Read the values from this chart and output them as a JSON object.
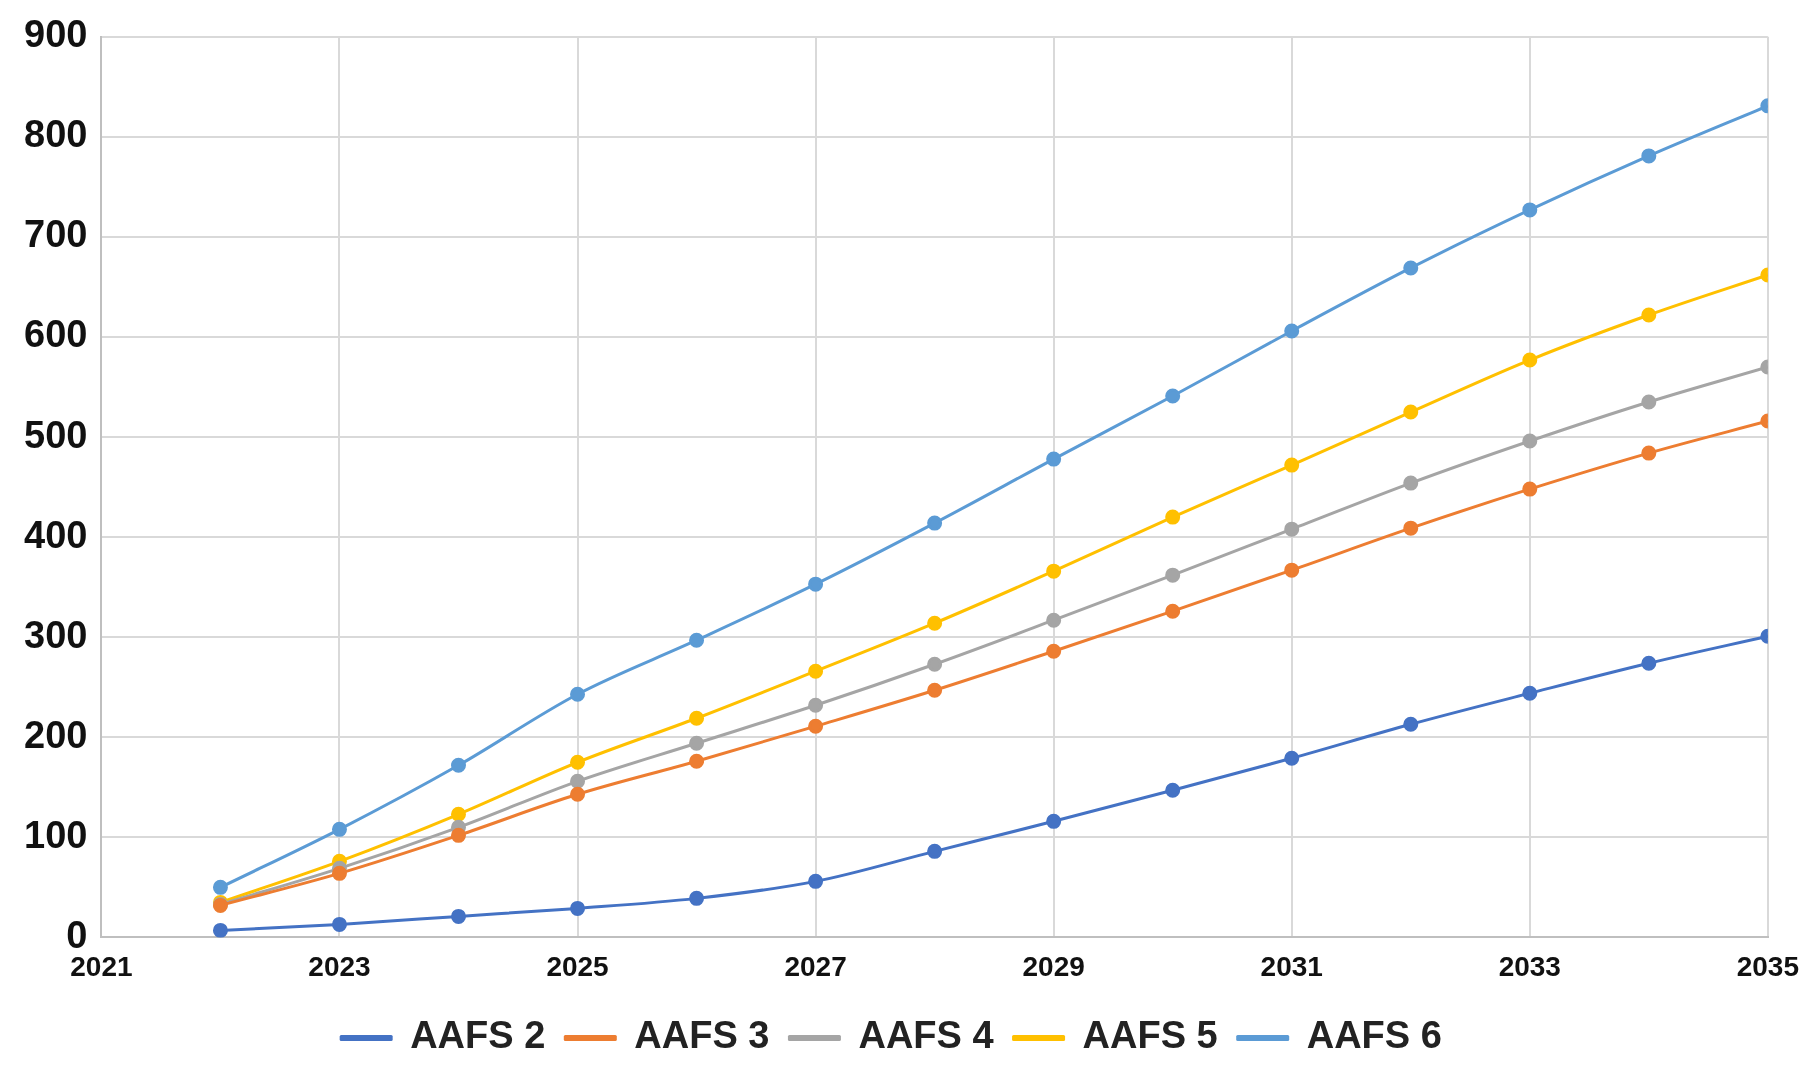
{
  "chart_data": {
    "type": "line",
    "x": [
      2022,
      2023,
      2024,
      2025,
      2026,
      2027,
      2028,
      2029,
      2030,
      2031,
      2032,
      2033,
      2034,
      2035
    ],
    "series": [
      {
        "name": "AAFS 2",
        "color": "#4472c4",
        "values": [
          7,
          13,
          21,
          29,
          39,
          56,
          86,
          116,
          147,
          179,
          213,
          244,
          274,
          301
        ]
      },
      {
        "name": "AAFS 3",
        "color": "#ed7d31",
        "values": [
          32,
          64,
          102,
          143,
          176,
          211,
          247,
          286,
          326,
          367,
          409,
          448,
          484,
          516
        ]
      },
      {
        "name": "AAFS 4",
        "color": "#a5a5a5",
        "values": [
          33,
          69,
          110,
          156,
          194,
          232,
          273,
          317,
          362,
          408,
          454,
          496,
          535,
          570
        ]
      },
      {
        "name": "AAFS 5",
        "color": "#ffc000",
        "values": [
          35,
          76,
          123,
          175,
          219,
          266,
          314,
          366,
          420,
          472,
          525,
          577,
          622,
          662
        ]
      },
      {
        "name": "AAFS 6",
        "color": "#5b9bd5",
        "values": [
          50,
          108,
          172,
          243,
          297,
          353,
          414,
          478,
          541,
          606,
          669,
          727,
          781,
          831
        ]
      }
    ],
    "xlim": [
      2021,
      2035
    ],
    "xticks": [
      2021,
      2023,
      2025,
      2027,
      2029,
      2031,
      2033,
      2035
    ],
    "ylim": [
      0,
      900
    ],
    "yticks": [
      0,
      100,
      200,
      300,
      400,
      500,
      600,
      700,
      800,
      900
    ],
    "grid": true,
    "legend": "bottom",
    "marker": "circle",
    "line_style": "solid"
  }
}
